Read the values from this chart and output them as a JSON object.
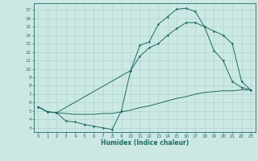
{
  "xlabel": "Humidex (Indice chaleur)",
  "bg_color": "#cce8e4",
  "grid_color": "#aad0cc",
  "line_color": "#1e6b62",
  "xlim": [
    -0.5,
    23.5
  ],
  "ylim": [
    2.5,
    17.8
  ],
  "xticks": [
    0,
    1,
    2,
    3,
    4,
    5,
    6,
    7,
    8,
    9,
    10,
    11,
    12,
    13,
    14,
    15,
    16,
    17,
    18,
    19,
    20,
    21,
    22,
    23
  ],
  "yticks": [
    3,
    4,
    5,
    6,
    7,
    8,
    9,
    10,
    11,
    12,
    13,
    14,
    15,
    16,
    17
  ],
  "curve1_x": [
    0,
    1,
    2,
    3,
    4,
    5,
    6,
    7,
    8,
    9,
    10,
    11,
    12,
    13,
    14,
    15,
    16,
    17,
    18,
    19,
    20,
    21,
    22,
    23
  ],
  "curve1_y": [
    5.5,
    4.9,
    4.8,
    3.8,
    3.7,
    3.4,
    3.2,
    3.0,
    2.8,
    5.0,
    9.8,
    12.8,
    13.2,
    15.3,
    16.2,
    17.1,
    17.2,
    16.8,
    15.0,
    12.2,
    11.0,
    8.5,
    7.8,
    7.5
  ],
  "curve2_x": [
    0,
    1,
    2,
    10,
    11,
    12,
    13,
    14,
    15,
    16,
    17,
    18,
    19,
    20,
    21,
    22,
    23
  ],
  "curve2_y": [
    5.5,
    4.9,
    4.8,
    9.8,
    11.5,
    12.5,
    13.0,
    14.0,
    14.8,
    15.5,
    15.5,
    15.0,
    14.5,
    14.0,
    13.0,
    8.5,
    7.5
  ],
  "curve3_x": [
    0,
    1,
    2,
    3,
    4,
    5,
    6,
    7,
    8,
    9,
    10,
    11,
    12,
    13,
    14,
    15,
    16,
    17,
    18,
    19,
    20,
    21,
    22,
    23
  ],
  "curve3_y": [
    5.5,
    4.9,
    4.8,
    4.7,
    4.6,
    4.6,
    4.6,
    4.7,
    4.7,
    4.9,
    5.1,
    5.4,
    5.6,
    5.9,
    6.2,
    6.5,
    6.7,
    7.0,
    7.2,
    7.3,
    7.4,
    7.4,
    7.5,
    7.5
  ],
  "curve1_markers": [
    0,
    1,
    2,
    3,
    4,
    5,
    6,
    7,
    8,
    9,
    10,
    11,
    12,
    13,
    14,
    15,
    16,
    17,
    18,
    19,
    20,
    21,
    22,
    23
  ],
  "curve2_markers": [
    0,
    10,
    11,
    12,
    13,
    14,
    15,
    16,
    17,
    18,
    19,
    20,
    21,
    22,
    23
  ]
}
